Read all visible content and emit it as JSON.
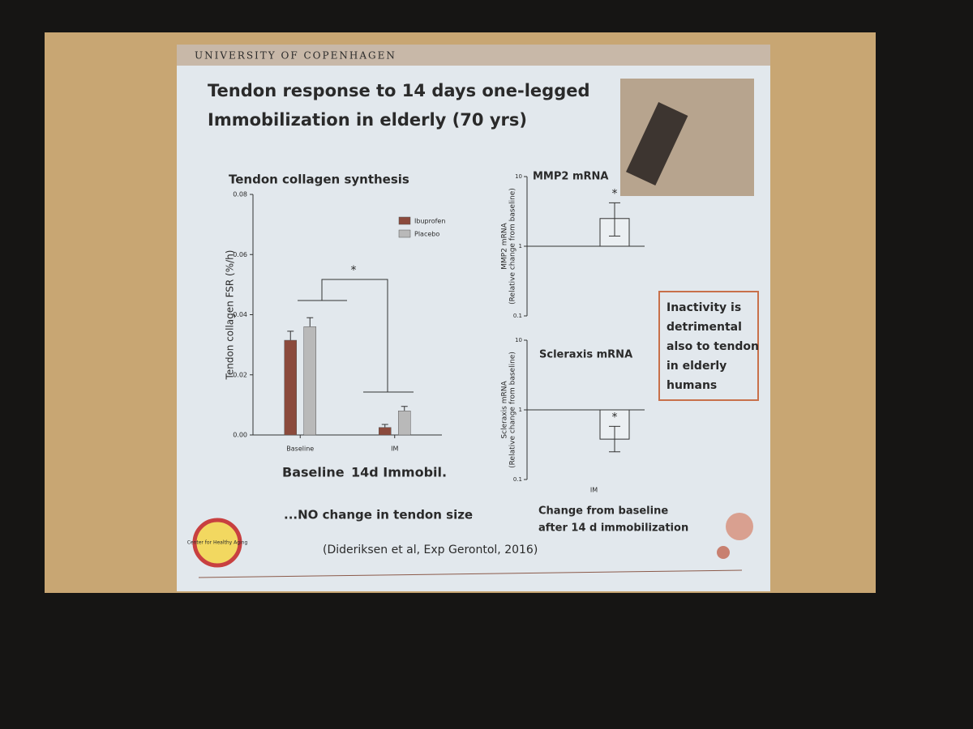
{
  "header": "UNIVERSITY OF COPENHAGEN",
  "title": [
    "Tendon response to 14 days one-legged",
    "Immobilization in elderly (70 yrs)"
  ],
  "chart_data": [
    {
      "type": "bar",
      "title": "Tendon collagen synthesis",
      "y_label": "Tendon collagen FSR (%/h)",
      "categories": [
        "Baseline",
        "IM"
      ],
      "series": [
        {
          "name": "Ibuprofen",
          "color": "#8b4a3c",
          "values": [
            0.0315,
            0.0025
          ],
          "errors": [
            0.003,
            0.001
          ]
        },
        {
          "name": "Placebo",
          "color": "#b9b9b9",
          "values": [
            0.036,
            0.008
          ],
          "errors": [
            0.003,
            0.0015
          ]
        }
      ],
      "ylim": [
        0,
        0.08
      ],
      "yticks": [
        {
          "value": 0,
          "label": "0.00"
        },
        {
          "value": 0.02,
          "label": "0.02"
        },
        {
          "value": 0.04,
          "label": "0.04"
        },
        {
          "value": 0.06,
          "label": "0.06"
        },
        {
          "value": 0.08,
          "label": "0.08"
        }
      ],
      "annotation": "*",
      "legend": "upper right"
    },
    {
      "type": "logbar",
      "title": "MMP2 mRNA",
      "y_label": [
        "MMP2 mRNA",
        "(Relative change from baseline)"
      ],
      "categories": [
        null
      ],
      "values": [
        2.5
      ],
      "error_low": [
        1.4
      ],
      "error_high": [
        4.2
      ],
      "color": "#ffffff",
      "ylim": [
        0.1,
        10
      ],
      "yticks": [
        0.1,
        1,
        10
      ],
      "log_y": true,
      "reference_line": 1,
      "annotation": "*"
    },
    {
      "type": "logbar",
      "title": "Scleraxis mRNA",
      "y_label": [
        "Scleraxis mRNA",
        "(Relative change from baseline)"
      ],
      "categories": [
        "IM"
      ],
      "values": [
        0.38
      ],
      "error_low": [
        0.25
      ],
      "error_high": [
        0.58
      ],
      "color": "#ffffff",
      "ylim": [
        0.1,
        10
      ],
      "yticks": [
        0.1,
        1,
        10
      ],
      "log_y": true,
      "reference_line": 1,
      "annotation": "*"
    }
  ],
  "labels": {
    "baseline": "Baseline",
    "immobil": "14d Immobil.",
    "size_note": "...NO change in tendon size",
    "change_note": [
      "Change from baseline",
      "after 14 d immobilization"
    ],
    "callout": [
      "Inactivity is",
      "detrimental",
      "also to tendon",
      "in elderly",
      "humans"
    ],
    "citation": "(Dideriksen et al, Exp Gerontol, 2016)",
    "logo": "Center for Healthy Aging"
  }
}
